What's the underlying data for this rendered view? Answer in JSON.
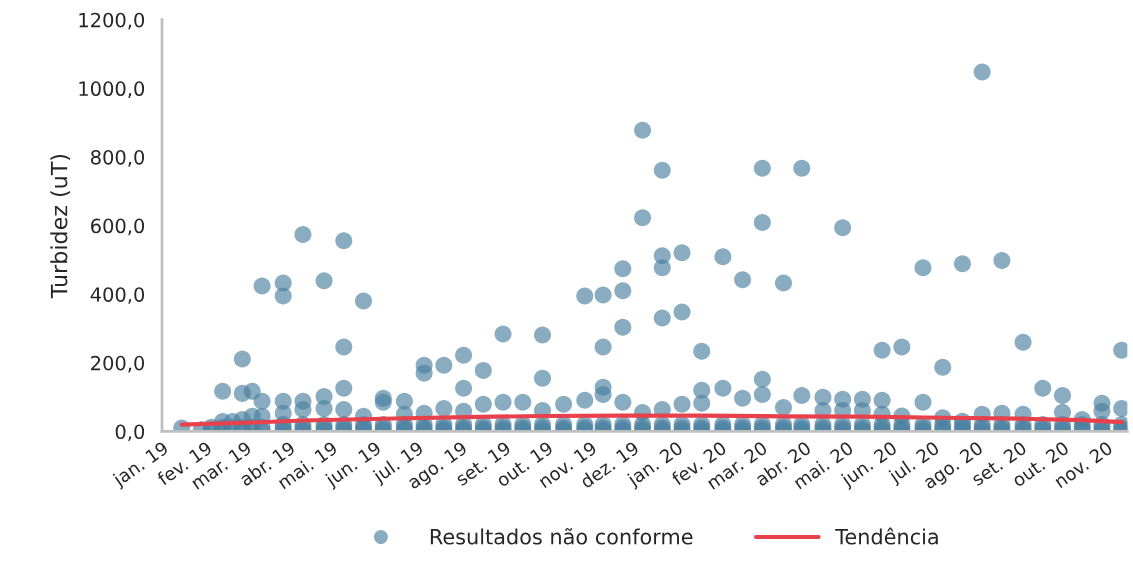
{
  "chart_data": {
    "type": "scatter",
    "ylabel": "Turbidez (uT)",
    "xlim": [
      "2019-01-01",
      "2020-11-16"
    ],
    "ylim": [
      0,
      1200
    ],
    "yticks": [
      {
        "value": 0,
        "label": "0,0"
      },
      {
        "value": 200,
        "label": "200,0"
      },
      {
        "value": 400,
        "label": "400,0"
      },
      {
        "value": 600,
        "label": "600,0"
      },
      {
        "value": 800,
        "label": "800,0"
      },
      {
        "value": 1000,
        "label": "1000,0"
      },
      {
        "value": 1200,
        "label": "1200,0"
      }
    ],
    "xticks": [
      {
        "value": "2019-01-01",
        "label": "jan. 19"
      },
      {
        "value": "2019-02-01",
        "label": "fev. 19"
      },
      {
        "value": "2019-03-01",
        "label": "mar. 19"
      },
      {
        "value": "2019-04-01",
        "label": "abr. 19"
      },
      {
        "value": "2019-05-01",
        "label": "mai. 19"
      },
      {
        "value": "2019-06-01",
        "label": "jun. 19"
      },
      {
        "value": "2019-07-01",
        "label": "jul. 19"
      },
      {
        "value": "2019-08-01",
        "label": "ago. 19"
      },
      {
        "value": "2019-09-01",
        "label": "set. 19"
      },
      {
        "value": "2019-10-01",
        "label": "out. 19"
      },
      {
        "value": "2019-11-01",
        "label": "nov. 19"
      },
      {
        "value": "2019-12-01",
        "label": "dez. 19"
      },
      {
        "value": "2020-01-01",
        "label": "jan. 20"
      },
      {
        "value": "2020-02-01",
        "label": "fev. 20"
      },
      {
        "value": "2020-03-01",
        "label": "mar. 20"
      },
      {
        "value": "2020-04-01",
        "label": "abr. 20"
      },
      {
        "value": "2020-05-01",
        "label": "mai. 20"
      },
      {
        "value": "2020-06-01",
        "label": "jun. 20"
      },
      {
        "value": "2020-07-01",
        "label": "jul. 20"
      },
      {
        "value": "2020-08-01",
        "label": "ago. 20"
      },
      {
        "value": "2020-09-01",
        "label": "set. 20"
      },
      {
        "value": "2020-10-01",
        "label": "out. 20"
      },
      {
        "value": "2020-11-01",
        "label": "nov. 20"
      }
    ],
    "grid": false,
    "legend": "bottom",
    "series": [
      {
        "name": "Resultados não conforme",
        "marker": "circle",
        "color": "#4a7fa0",
        "x": [
          "2019-01-15",
          "2019-01-29",
          "2019-02-05",
          "2019-02-05",
          "2019-02-13",
          "2019-02-13",
          "2019-02-13",
          "2019-02-13",
          "2019-02-20",
          "2019-02-20",
          "2019-02-27",
          "2019-02-27",
          "2019-02-27",
          "2019-02-27",
          "2019-02-27",
          "2019-03-06",
          "2019-03-06",
          "2019-03-06",
          "2019-03-06",
          "2019-03-13",
          "2019-03-13",
          "2019-03-13",
          "2019-03-13",
          "2019-03-13",
          "2019-03-28",
          "2019-03-28",
          "2019-03-28",
          "2019-03-28",
          "2019-03-28",
          "2019-03-28",
          "2019-03-28",
          "2019-04-11",
          "2019-04-11",
          "2019-04-11",
          "2019-04-11",
          "2019-04-11",
          "2019-04-11",
          "2019-04-26",
          "2019-04-26",
          "2019-04-26",
          "2019-04-26",
          "2019-04-26",
          "2019-04-26",
          "2019-05-10",
          "2019-05-10",
          "2019-05-10",
          "2019-05-10",
          "2019-05-10",
          "2019-05-10",
          "2019-05-10",
          "2019-05-24",
          "2019-05-24",
          "2019-05-24",
          "2019-05-24",
          "2019-05-24",
          "2019-06-07",
          "2019-06-07",
          "2019-06-07",
          "2019-06-07",
          "2019-06-07",
          "2019-06-22",
          "2019-06-22",
          "2019-06-22",
          "2019-06-22",
          "2019-06-22",
          "2019-07-06",
          "2019-07-06",
          "2019-07-06",
          "2019-07-06",
          "2019-07-06",
          "2019-07-06",
          "2019-07-20",
          "2019-07-20",
          "2019-07-20",
          "2019-07-20",
          "2019-07-20",
          "2019-08-03",
          "2019-08-03",
          "2019-08-03",
          "2019-08-03",
          "2019-08-03",
          "2019-08-03",
          "2019-08-17",
          "2019-08-17",
          "2019-08-17",
          "2019-08-17",
          "2019-08-17",
          "2019-08-31",
          "2019-08-31",
          "2019-08-31",
          "2019-08-31",
          "2019-08-31",
          "2019-09-14",
          "2019-09-14",
          "2019-09-14",
          "2019-09-14",
          "2019-09-28",
          "2019-09-28",
          "2019-09-28",
          "2019-09-28",
          "2019-09-28",
          "2019-09-28",
          "2019-10-13",
          "2019-10-13",
          "2019-10-13",
          "2019-10-13",
          "2019-10-28",
          "2019-10-28",
          "2019-10-28",
          "2019-10-28",
          "2019-10-28",
          "2019-11-10",
          "2019-11-10",
          "2019-11-10",
          "2019-11-10",
          "2019-11-10",
          "2019-11-10",
          "2019-11-10",
          "2019-11-24",
          "2019-11-24",
          "2019-11-24",
          "2019-11-24",
          "2019-11-24",
          "2019-11-24",
          "2019-11-24",
          "2019-12-08",
          "2019-12-08",
          "2019-12-08",
          "2019-12-08",
          "2019-12-08",
          "2019-12-08",
          "2019-12-22",
          "2019-12-22",
          "2019-12-22",
          "2019-12-22",
          "2019-12-22",
          "2019-12-22",
          "2019-12-22",
          "2019-12-22",
          "2020-01-05",
          "2020-01-05",
          "2020-01-05",
          "2020-01-05",
          "2020-01-05",
          "2020-01-05",
          "2020-01-19",
          "2020-01-19",
          "2020-01-19",
          "2020-01-19",
          "2020-01-19",
          "2020-01-19",
          "2020-02-03",
          "2020-02-03",
          "2020-02-03",
          "2020-02-03",
          "2020-02-03",
          "2020-02-17",
          "2020-02-17",
          "2020-02-17",
          "2020-02-17",
          "2020-02-17",
          "2020-03-02",
          "2020-03-02",
          "2020-03-02",
          "2020-03-02",
          "2020-03-02",
          "2020-03-02",
          "2020-03-02",
          "2020-03-17",
          "2020-03-17",
          "2020-03-17",
          "2020-03-17",
          "2020-03-17",
          "2020-03-30",
          "2020-03-30",
          "2020-03-30",
          "2020-03-30",
          "2020-03-30",
          "2020-04-14",
          "2020-04-14",
          "2020-04-14",
          "2020-04-14",
          "2020-04-14",
          "2020-04-28",
          "2020-04-28",
          "2020-04-28",
          "2020-04-28",
          "2020-04-28",
          "2020-04-28",
          "2020-05-12",
          "2020-05-12",
          "2020-05-12",
          "2020-05-12",
          "2020-05-12",
          "2020-05-26",
          "2020-05-26",
          "2020-05-26",
          "2020-05-26",
          "2020-05-26",
          "2020-05-26",
          "2020-06-09",
          "2020-06-09",
          "2020-06-09",
          "2020-06-09",
          "2020-06-09",
          "2020-06-24",
          "2020-06-24",
          "2020-06-24",
          "2020-06-24",
          "2020-06-24",
          "2020-07-08",
          "2020-07-08",
          "2020-07-08",
          "2020-07-08",
          "2020-07-08",
          "2020-07-22",
          "2020-07-22",
          "2020-07-22",
          "2020-07-22",
          "2020-07-22",
          "2020-08-05",
          "2020-08-05",
          "2020-08-05",
          "2020-08-05",
          "2020-08-05",
          "2020-08-19",
          "2020-08-19",
          "2020-08-19",
          "2020-08-19",
          "2020-08-19",
          "2020-09-03",
          "2020-09-03",
          "2020-09-03",
          "2020-09-03",
          "2020-09-03",
          "2020-09-17",
          "2020-09-17",
          "2020-09-17",
          "2020-09-17",
          "2020-10-01",
          "2020-10-01",
          "2020-10-01",
          "2020-10-01",
          "2020-10-01",
          "2020-10-15",
          "2020-10-15",
          "2020-10-15",
          "2020-10-15",
          "2020-10-29",
          "2020-10-29",
          "2020-10-29",
          "2020-10-29",
          "2020-10-29",
          "2020-11-12",
          "2020-11-12",
          "2020-11-12",
          "2020-11-12",
          "2020-11-12"
        ],
        "values": [
          10,
          5,
          5,
          12,
          3,
          12,
          29,
          117,
          12,
          29,
          3,
          12,
          35,
          111,
          211,
          3,
          12,
          44,
          117,
          3,
          12,
          44,
          88,
          424,
          2,
          10,
          20,
          53,
          88,
          395,
          433,
          2,
          10,
          20,
          64,
          88,
          574,
          2,
          10,
          20,
          67,
          102,
          439,
          2,
          10,
          20,
          64,
          126,
          246,
          556,
          2,
          10,
          20,
          44,
          380,
          2,
          10,
          20,
          85,
          97,
          2,
          10,
          20,
          50,
          88,
          2,
          10,
          20,
          53,
          170,
          193,
          2,
          10,
          20,
          67,
          193,
          2,
          10,
          20,
          59,
          126,
          222,
          2,
          10,
          20,
          79,
          178,
          2,
          10,
          20,
          85,
          284,
          2,
          10,
          20,
          85,
          2,
          10,
          20,
          61,
          155,
          281,
          2,
          10,
          20,
          79,
          2,
          10,
          20,
          91,
          395,
          2,
          10,
          20,
          108,
          129,
          246,
          398,
          2,
          10,
          20,
          85,
          304,
          410,
          474,
          2,
          10,
          20,
          55,
          623,
          878,
          2,
          10,
          20,
          64,
          331,
          477,
          512,
          761,
          2,
          10,
          20,
          79,
          348,
          521,
          2,
          10,
          20,
          82,
          120,
          234,
          2,
          10,
          20,
          126,
          509,
          2,
          10,
          20,
          97,
          442,
          2,
          10,
          20,
          108,
          152,
          609,
          767,
          2,
          10,
          20,
          70,
          433,
          2,
          10,
          20,
          105,
          767,
          2,
          10,
          20,
          61,
          100,
          2,
          10,
          20,
          61,
          94,
          594,
          2,
          10,
          20,
          61,
          94,
          2,
          10,
          20,
          50,
          91,
          237,
          2,
          10,
          20,
          45,
          246,
          2,
          10,
          20,
          85,
          477,
          2,
          10,
          20,
          40,
          187,
          2,
          10,
          20,
          30,
          489,
          2,
          10,
          20,
          50,
          1048,
          2,
          10,
          20,
          53,
          498,
          2,
          10,
          20,
          50,
          260,
          2,
          10,
          20,
          126,
          2,
          10,
          20,
          56,
          105,
          2,
          10,
          20,
          35,
          2,
          10,
          20,
          59,
          82,
          2,
          10,
          20,
          67,
          237
        ]
      },
      {
        "name": "Tendência",
        "type": "line",
        "color": "#e8414b",
        "line_style": "solid",
        "x": [
          "2019-01-15",
          "2019-03-06",
          "2019-04-11",
          "2019-06-07",
          "2019-08-03",
          "2019-09-28",
          "2019-11-24",
          "2020-01-19",
          "2020-03-17",
          "2020-05-12",
          "2020-07-08",
          "2020-09-03",
          "2020-10-15",
          "2020-11-12"
        ],
        "values": [
          20,
          26,
          32,
          37,
          42,
          45,
          46,
          46,
          44,
          43,
          40,
          37,
          33,
          27
        ]
      }
    ]
  }
}
